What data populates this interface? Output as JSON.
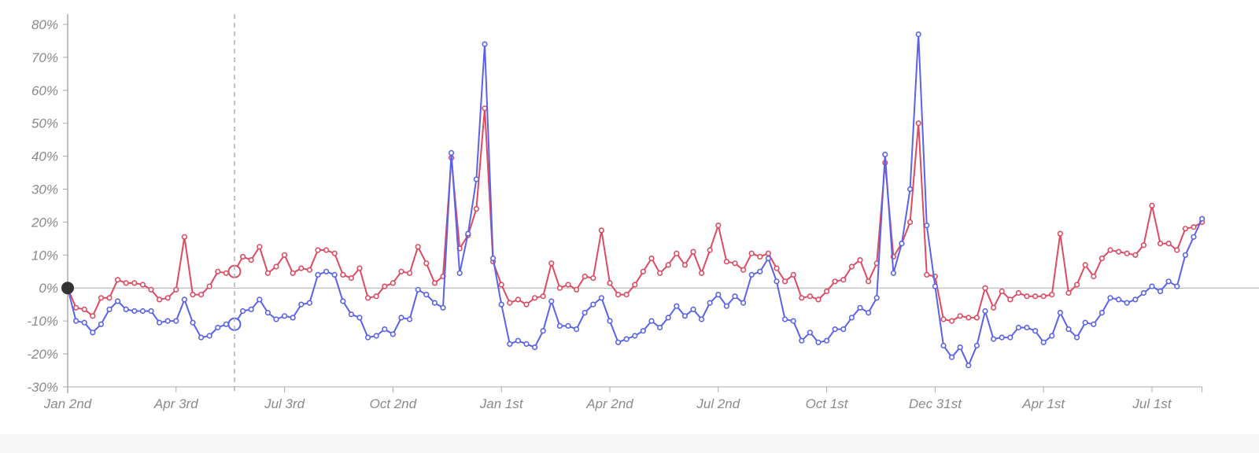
{
  "colors": {
    "series_blue": "#5a63e8",
    "series_red": "#dc4b61",
    "axis": "#aaaaaa",
    "marker_dark": "#333333"
  },
  "chart_data": {
    "type": "line",
    "title": "",
    "xlabel": "",
    "ylabel": "",
    "ylim": [
      -30,
      80
    ],
    "y_ticks": [
      "80%",
      "70%",
      "60%",
      "50%",
      "40%",
      "30%",
      "20%",
      "10%",
      "0%",
      "-10%",
      "-20%",
      "-30%"
    ],
    "y_tick_values": [
      80,
      70,
      60,
      50,
      40,
      30,
      20,
      10,
      0,
      -10,
      -20,
      -30
    ],
    "x_tick_labels": [
      "Jan 2nd",
      "Apr 3rd",
      "Jul 3rd",
      "Oct 2nd",
      "Jan 1st",
      "Apr 2nd",
      "Jul 2nd",
      "Oct 1st",
      "Dec 31st",
      "Apr 1st",
      "Jul 1st"
    ],
    "x_tick_weeks": [
      0,
      13,
      26,
      39,
      52,
      65,
      78,
      91,
      104,
      117,
      130
    ],
    "x_unit": "weekly points starting Jan 2nd",
    "hover_week": 20,
    "grid": false,
    "legend": "none",
    "series": [
      {
        "color": "#5a63e8",
        "values": [
          0,
          -10,
          -10.5,
          -13.5,
          -11,
          -6.5,
          -4,
          -6.5,
          -7,
          -7,
          -7,
          -10.5,
          -10,
          -10,
          -3.5,
          -10.5,
          -15,
          -14.5,
          -12,
          -11,
          -11,
          -7,
          -6.5,
          -3.5,
          -7.5,
          -9.5,
          -8.5,
          -9,
          -5,
          -4.5,
          4,
          5,
          4,
          -4,
          -8,
          -9,
          -15,
          -14.5,
          -12.5,
          -14,
          -9,
          -9.5,
          -0.5,
          -2,
          -4.5,
          -6,
          41,
          4.5,
          16.5,
          33,
          74,
          9,
          -5,
          -17,
          -16,
          -17,
          -18,
          -13,
          -4,
          -11.5,
          -11.5,
          -12.5,
          -7.5,
          -5,
          -3,
          -10,
          -16.5,
          -15.5,
          -14.5,
          -13,
          -10,
          -12,
          -9,
          -5.5,
          -8.5,
          -6.5,
          -9.5,
          -4.5,
          -2,
          -5.5,
          -2.5,
          -4.5,
          4,
          5,
          9,
          2,
          -9.5,
          -10,
          -16,
          -13.5,
          -16.5,
          -16,
          -12.5,
          -12.5,
          -9,
          -6,
          -7.5,
          -3,
          40.5,
          4.5,
          13.5,
          30,
          77,
          19,
          0.5,
          -17.5,
          -21,
          -18,
          -23.5,
          -17.5,
          -7,
          -15.5,
          -15,
          -15,
          -12,
          -12,
          -13,
          -16.5,
          -14.5,
          -7.5,
          -12.5,
          -15,
          -10.5,
          -11,
          -7.5,
          -3,
          -3.5,
          -4.5,
          -3.5,
          -1.5,
          0.5,
          -1,
          2,
          0.5,
          10,
          15.5,
          21
        ]
      },
      {
        "color": "#dc4b61",
        "values": [
          0,
          -6,
          -6.5,
          -8.5,
          -3,
          -3,
          2.5,
          1.5,
          1.5,
          1,
          -0.5,
          -3.5,
          -3,
          -0.5,
          15.5,
          -2,
          -2,
          0.5,
          5,
          4.5,
          5,
          9.5,
          8.5,
          12.5,
          4.5,
          6.5,
          10,
          4.5,
          6,
          5.5,
          11.5,
          11.5,
          10.5,
          4,
          3,
          6,
          -3,
          -2.5,
          0.5,
          1.5,
          5,
          4.5,
          12.5,
          7.5,
          1.5,
          3.5,
          39.5,
          12,
          16,
          24,
          54.5,
          8,
          1,
          -4.5,
          -3.5,
          -5,
          -3,
          -2.5,
          7.5,
          0,
          1,
          -0.5,
          3.5,
          3,
          17.5,
          1.5,
          -2,
          -2,
          1,
          5,
          9,
          4.5,
          7,
          10.5,
          7,
          11,
          4.5,
          11.5,
          19,
          8,
          7.5,
          5.5,
          10.5,
          9.5,
          10.5,
          6,
          2,
          4,
          -3,
          -2.5,
          -3.5,
          -1,
          2,
          2.5,
          6.5,
          8.5,
          2,
          7.5,
          38,
          9.5,
          13.5,
          20,
          50,
          4,
          3.5,
          -9.5,
          -10,
          -8.5,
          -9,
          -9,
          0,
          -6,
          -1,
          -3.5,
          -1.5,
          -2.5,
          -2.5,
          -2.5,
          -2,
          16.5,
          -1.5,
          1,
          7,
          3.5,
          9,
          11.5,
          11,
          10.5,
          10,
          13,
          25,
          13.5,
          13.5,
          11.5,
          18,
          18.5,
          20
        ]
      }
    ]
  }
}
